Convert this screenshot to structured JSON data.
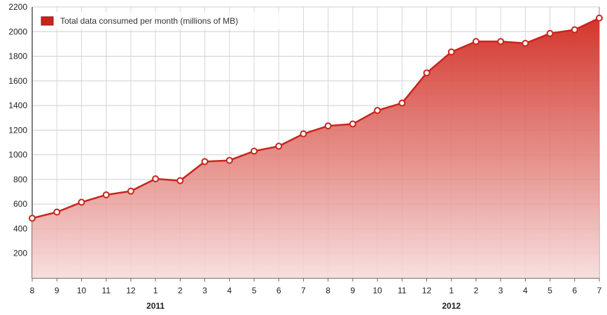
{
  "chart_data": {
    "type": "area",
    "title": "",
    "xlabel": "",
    "ylabel": "",
    "ylim": [
      0,
      2200
    ],
    "y_ticks": [
      200,
      400,
      600,
      800,
      1000,
      1200,
      1400,
      1600,
      1800,
      2000,
      2200
    ],
    "grid": true,
    "legend_position": "top-left",
    "categories": [
      "8",
      "9",
      "10",
      "11",
      "12",
      "1",
      "2",
      "3",
      "4",
      "5",
      "6",
      "7",
      "8",
      "9",
      "10",
      "11",
      "12",
      "1",
      "2",
      "3",
      "4",
      "5",
      "6",
      "7"
    ],
    "year_labels": [
      {
        "label": "2011",
        "category_index": 5
      },
      {
        "label": "2012",
        "category_index": 17
      }
    ],
    "series": [
      {
        "name": "Total data consumed per month (millions of MB)",
        "color": "#c8241c",
        "values": [
          485,
          535,
          615,
          675,
          705,
          805,
          790,
          945,
          955,
          1030,
          1070,
          1170,
          1235,
          1250,
          1360,
          1420,
          1665,
          1835,
          1920,
          1920,
          1905,
          1985,
          2015,
          2110
        ]
      }
    ]
  }
}
